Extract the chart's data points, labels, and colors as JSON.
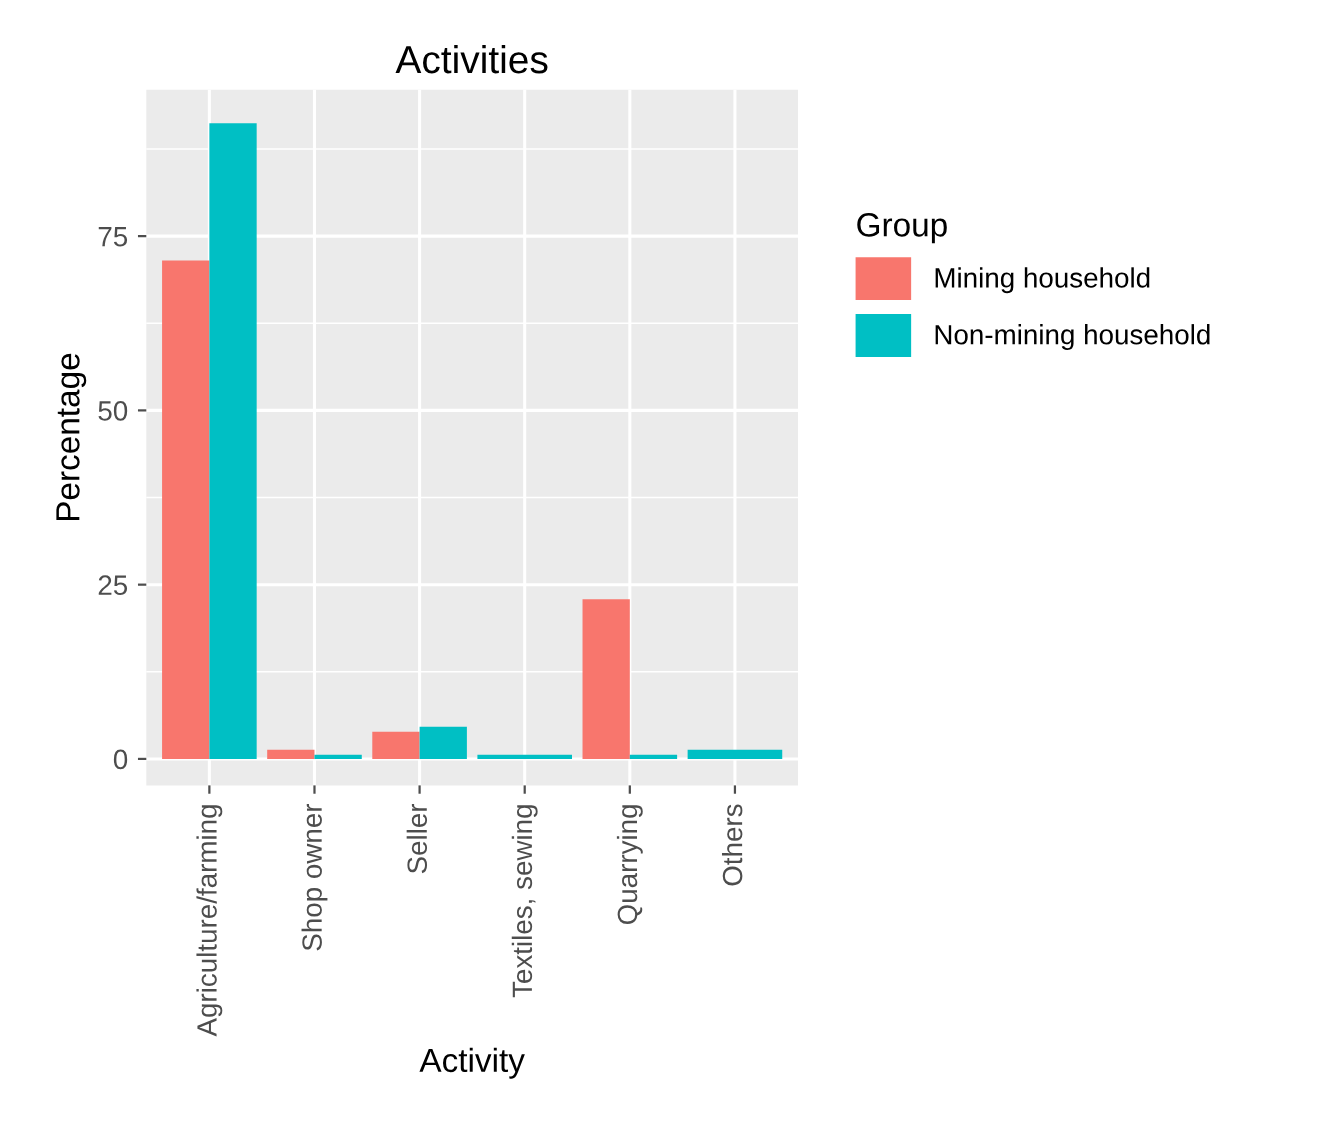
{
  "chart_data": {
    "type": "bar",
    "title": "Activities",
    "xlabel": "Activity",
    "ylabel": "Percentage",
    "legend_title": "Group",
    "categories": [
      "Agriculture/farming",
      "Shop owner",
      "Seller",
      "Textiles, sewing",
      "Quarrying",
      "Others"
    ],
    "series": [
      {
        "name": "Mining household",
        "color": "#f8766d",
        "values": [
          71.5,
          1.3,
          3.9,
          null,
          22.9,
          null
        ]
      },
      {
        "name": "Non-mining household",
        "color": "#00bfc4",
        "values": [
          91.2,
          0.6,
          4.6,
          0.6,
          0.6,
          1.3
        ]
      }
    ],
    "ylim": [
      -3.8,
      96
    ],
    "yticks": [
      0,
      25,
      50,
      75
    ],
    "grid": true,
    "legend": "right"
  }
}
